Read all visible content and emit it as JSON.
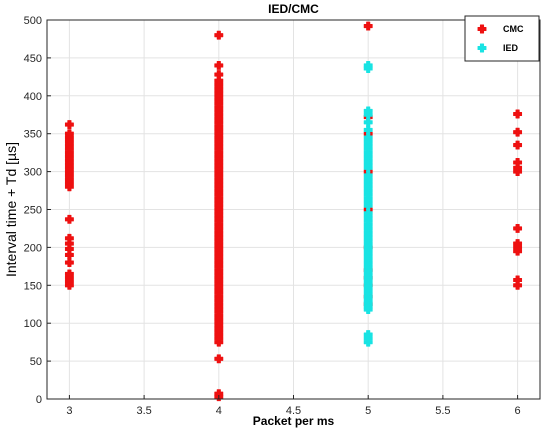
{
  "chart_data": {
    "type": "scatter",
    "title": "IED/CMC",
    "xlabel": "Packet per ms",
    "ylabel": "Interval time + Td [µs]",
    "xlim": [
      2.85,
      6.15
    ],
    "ylim": [
      0,
      500
    ],
    "x_ticks": [
      "3",
      "3.5",
      "4",
      "4.5",
      "5",
      "5.5",
      "6"
    ],
    "x_tick_values": [
      3,
      3.5,
      4,
      4.5,
      5,
      5.5,
      6
    ],
    "y_ticks": [
      "0",
      "50",
      "100",
      "150",
      "200",
      "250",
      "300",
      "350",
      "400",
      "450",
      "500"
    ],
    "y_tick_values": [
      0,
      50,
      100,
      150,
      200,
      250,
      300,
      350,
      400,
      450,
      500
    ],
    "grid": true,
    "legend_position": "top-right",
    "series": [
      {
        "name": "CMC",
        "color": "#ee1111",
        "points": [
          [
            3,
            150
          ],
          [
            3,
            155
          ],
          [
            3,
            160
          ],
          [
            3,
            165
          ],
          [
            3,
            180
          ],
          [
            3,
            190
          ],
          [
            3,
            198
          ],
          [
            3,
            205
          ],
          [
            3,
            212
          ],
          [
            3,
            237
          ],
          [
            3,
            280
          ],
          [
            3,
            285
          ],
          [
            3,
            290
          ],
          [
            3,
            295
          ],
          [
            3,
            300
          ],
          [
            3,
            305
          ],
          [
            3,
            310
          ],
          [
            3,
            315
          ],
          [
            3,
            320
          ],
          [
            3,
            325
          ],
          [
            3,
            330
          ],
          [
            3,
            335
          ],
          [
            3,
            340
          ],
          [
            3,
            345
          ],
          [
            3,
            350
          ],
          [
            3,
            362
          ],
          [
            4,
            3
          ],
          [
            4,
            7
          ],
          [
            4,
            53
          ],
          [
            4,
            75
          ],
          [
            4,
            80
          ],
          [
            4,
            85
          ],
          [
            4,
            90
          ],
          [
            4,
            95
          ],
          [
            4,
            100
          ],
          [
            4,
            105
          ],
          [
            4,
            110
          ],
          [
            4,
            115
          ],
          [
            4,
            120
          ],
          [
            4,
            125
          ],
          [
            4,
            130
          ],
          [
            4,
            135
          ],
          [
            4,
            140
          ],
          [
            4,
            145
          ],
          [
            4,
            150
          ],
          [
            4,
            155
          ],
          [
            4,
            160
          ],
          [
            4,
            165
          ],
          [
            4,
            170
          ],
          [
            4,
            175
          ],
          [
            4,
            180
          ],
          [
            4,
            185
          ],
          [
            4,
            190
          ],
          [
            4,
            195
          ],
          [
            4,
            200
          ],
          [
            4,
            205
          ],
          [
            4,
            210
          ],
          [
            4,
            215
          ],
          [
            4,
            220
          ],
          [
            4,
            225
          ],
          [
            4,
            230
          ],
          [
            4,
            235
          ],
          [
            4,
            240
          ],
          [
            4,
            245
          ],
          [
            4,
            250
          ],
          [
            4,
            255
          ],
          [
            4,
            260
          ],
          [
            4,
            265
          ],
          [
            4,
            270
          ],
          [
            4,
            275
          ],
          [
            4,
            280
          ],
          [
            4,
            285
          ],
          [
            4,
            290
          ],
          [
            4,
            295
          ],
          [
            4,
            300
          ],
          [
            4,
            305
          ],
          [
            4,
            310
          ],
          [
            4,
            315
          ],
          [
            4,
            320
          ],
          [
            4,
            325
          ],
          [
            4,
            330
          ],
          [
            4,
            335
          ],
          [
            4,
            340
          ],
          [
            4,
            345
          ],
          [
            4,
            350
          ],
          [
            4,
            355
          ],
          [
            4,
            360
          ],
          [
            4,
            365
          ],
          [
            4,
            370
          ],
          [
            4,
            375
          ],
          [
            4,
            380
          ],
          [
            4,
            385
          ],
          [
            4,
            390
          ],
          [
            4,
            395
          ],
          [
            4,
            400
          ],
          [
            4,
            405
          ],
          [
            4,
            410
          ],
          [
            4,
            415
          ],
          [
            4,
            420
          ],
          [
            4,
            428
          ],
          [
            4,
            440
          ],
          [
            4,
            480
          ],
          [
            5,
            125
          ],
          [
            5,
            135
          ],
          [
            5,
            150
          ],
          [
            5,
            160
          ],
          [
            5,
            170
          ],
          [
            5,
            200
          ],
          [
            5,
            250
          ],
          [
            5,
            300
          ],
          [
            5,
            350
          ],
          [
            5,
            372
          ],
          [
            5,
            492
          ],
          [
            6,
            150
          ],
          [
            6,
            157
          ],
          [
            6,
            195
          ],
          [
            6,
            200
          ],
          [
            6,
            205
          ],
          [
            6,
            225
          ],
          [
            6,
            300
          ],
          [
            6,
            305
          ],
          [
            6,
            312
          ],
          [
            6,
            335
          ],
          [
            6,
            352
          ],
          [
            6,
            376
          ]
        ]
      },
      {
        "name": "IED",
        "color": "#19e3e3",
        "points": [
          [
            5,
            75
          ],
          [
            5,
            80
          ],
          [
            5,
            85
          ],
          [
            5,
            118
          ],
          [
            5,
            122
          ],
          [
            5,
            126
          ],
          [
            5,
            130
          ],
          [
            5,
            135
          ],
          [
            5,
            140
          ],
          [
            5,
            145
          ],
          [
            5,
            150
          ],
          [
            5,
            155
          ],
          [
            5,
            160
          ],
          [
            5,
            165
          ],
          [
            5,
            170
          ],
          [
            5,
            175
          ],
          [
            5,
            180
          ],
          [
            5,
            185
          ],
          [
            5,
            190
          ],
          [
            5,
            195
          ],
          [
            5,
            200
          ],
          [
            5,
            205
          ],
          [
            5,
            210
          ],
          [
            5,
            215
          ],
          [
            5,
            220
          ],
          [
            5,
            225
          ],
          [
            5,
            230
          ],
          [
            5,
            235
          ],
          [
            5,
            240
          ],
          [
            5,
            245
          ],
          [
            5,
            255
          ],
          [
            5,
            260
          ],
          [
            5,
            265
          ],
          [
            5,
            270
          ],
          [
            5,
            275
          ],
          [
            5,
            280
          ],
          [
            5,
            285
          ],
          [
            5,
            290
          ],
          [
            5,
            295
          ],
          [
            5,
            305
          ],
          [
            5,
            310
          ],
          [
            5,
            315
          ],
          [
            5,
            320
          ],
          [
            5,
            325
          ],
          [
            5,
            330
          ],
          [
            5,
            335
          ],
          [
            5,
            340
          ],
          [
            5,
            345
          ],
          [
            5,
            355
          ],
          [
            5,
            365
          ],
          [
            5,
            375
          ],
          [
            5,
            380
          ],
          [
            5,
            436
          ],
          [
            5,
            440
          ]
        ]
      }
    ]
  }
}
